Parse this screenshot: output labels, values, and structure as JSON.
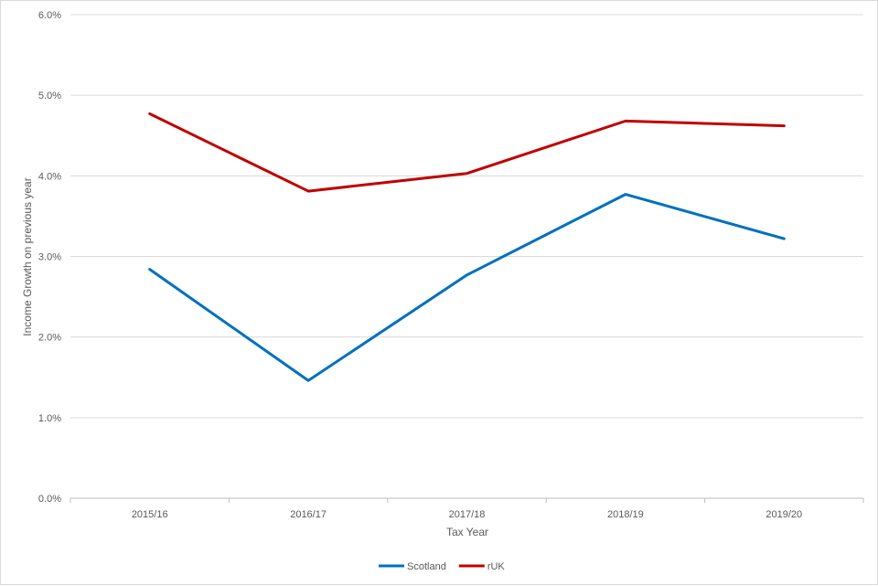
{
  "chart_data": {
    "type": "line",
    "categories": [
      "2015/16",
      "2016/17",
      "2017/18",
      "2018/19",
      "2019/20"
    ],
    "series": [
      {
        "name": "Scotland",
        "color": "#0070c0",
        "values": [
          2.84,
          1.46,
          2.77,
          3.77,
          3.22
        ]
      },
      {
        "name": "rUK",
        "color": "#c00000",
        "values": [
          4.77,
          3.81,
          4.03,
          4.68,
          4.62
        ]
      }
    ],
    "xlabel": "Tax Year",
    "ylabel": "Income Growth on previous year",
    "ylim": [
      0,
      6
    ],
    "yticks": [
      0,
      1,
      2,
      3,
      4,
      5,
      6
    ],
    "ytick_labels": [
      "0.0%",
      "1.0%",
      "2.0%",
      "3.0%",
      "4.0%",
      "5.0%",
      "6.0%"
    ],
    "grid": true,
    "legend_position": "bottom"
  }
}
